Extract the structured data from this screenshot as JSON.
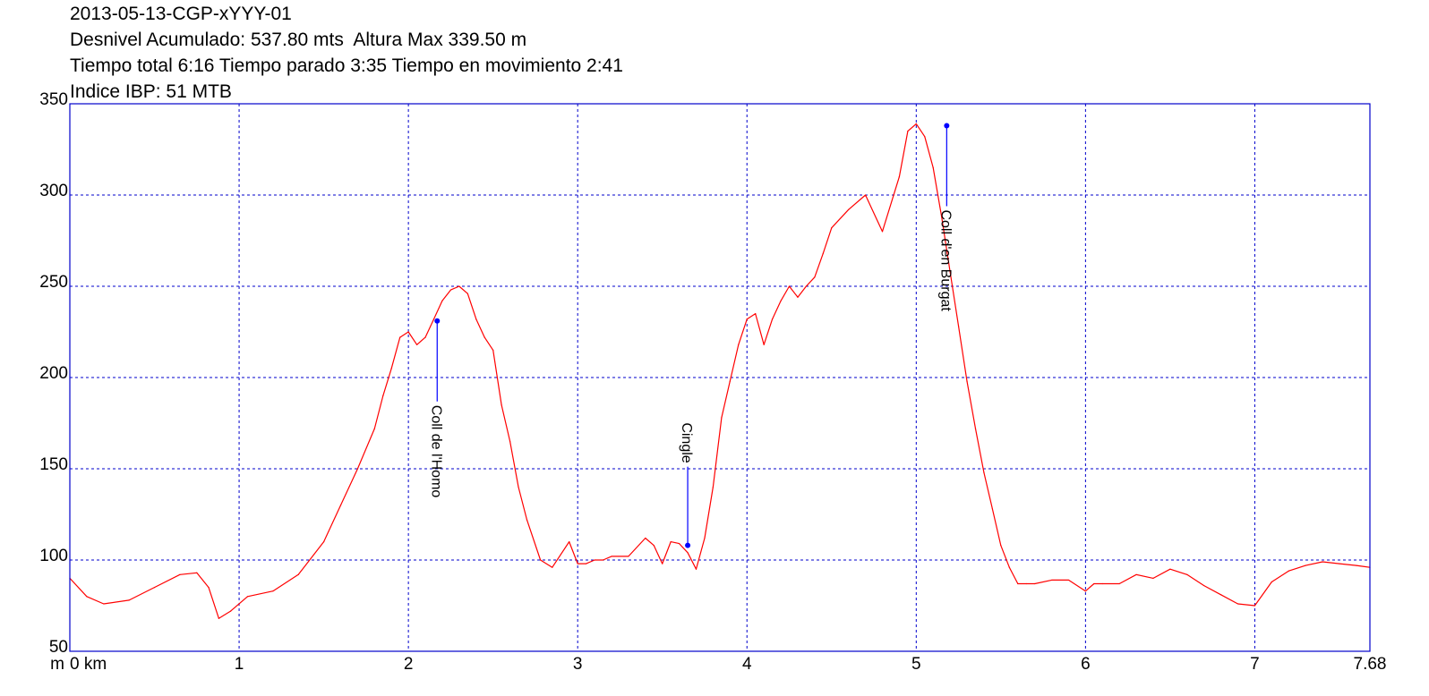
{
  "header": {
    "line1": "2013-05-13-CGP-xYYY-01",
    "line2": "Desnivel Acumulado: 537.80 mts  Altura Max 339.50 m",
    "line3": "Tiempo total 6:16 Tiempo parado 3:35 Tiempo en movimiento 2:41",
    "line4": "Indice IBP: 51 MTB"
  },
  "colors": {
    "frame": "#0000cc",
    "grid": "#0000cc",
    "profile": "#ff0000",
    "marker": "#0000ff",
    "text": "#000000"
  },
  "chart_data": {
    "type": "line",
    "title": "2013-05-13-CGP-xYYY-01",
    "xlabel": "km",
    "ylabel": "m",
    "xlim": [
      0,
      7.68
    ],
    "ylim": [
      50,
      350
    ],
    "x_ticks": [
      0,
      1,
      2,
      3,
      4,
      5,
      6,
      7,
      7.68
    ],
    "x_tick_labels": [
      "0 km",
      "1",
      "2",
      "3",
      "4",
      "5",
      "6",
      "7",
      "7.68"
    ],
    "y_ticks": [
      50,
      100,
      150,
      200,
      250,
      300,
      350
    ],
    "y_tick_labels": [
      "50",
      "100",
      "150",
      "200",
      "250",
      "300",
      "350"
    ],
    "y_unit_label": "m",
    "grid": true,
    "series": [
      {
        "x": [
          0,
          0.1,
          0.2,
          0.35,
          0.5,
          0.65,
          0.75,
          0.82,
          0.88,
          0.95,
          1.05,
          1.2,
          1.35,
          1.5,
          1.6,
          1.7,
          1.8,
          1.85,
          1.9,
          1.95,
          2.0,
          2.05,
          2.1,
          2.15,
          2.2,
          2.25,
          2.3,
          2.35,
          2.4,
          2.45,
          2.5,
          2.55,
          2.6,
          2.65,
          2.7,
          2.78,
          2.85,
          2.95,
          3.0,
          3.05,
          3.1,
          3.15,
          3.2,
          3.3,
          3.4,
          3.45,
          3.5,
          3.55,
          3.6,
          3.65,
          3.7,
          3.75,
          3.8,
          3.85,
          3.9,
          3.95,
          4.0,
          4.05,
          4.1,
          4.15,
          4.2,
          4.25,
          4.3,
          4.35,
          4.4,
          4.45,
          4.5,
          4.6,
          4.7,
          4.8,
          4.9,
          4.95,
          5.0,
          5.05,
          5.1,
          5.15,
          5.2,
          5.25,
          5.3,
          5.35,
          5.4,
          5.45,
          5.5,
          5.55,
          5.6,
          5.65,
          5.7,
          5.8,
          5.9,
          6.0,
          6.05,
          6.1,
          6.2,
          6.3,
          6.4,
          6.5,
          6.6,
          6.7,
          6.8,
          6.9,
          7.0,
          7.1,
          7.2,
          7.3,
          7.4,
          7.5,
          7.6,
          7.68
        ],
        "y": [
          90,
          80,
          76,
          78,
          85,
          92,
          93,
          85,
          68,
          72,
          80,
          83,
          92,
          110,
          130,
          150,
          172,
          190,
          205,
          222,
          225,
          218,
          222,
          232,
          242,
          248,
          250,
          246,
          232,
          222,
          215,
          185,
          165,
          140,
          122,
          100,
          96,
          110,
          98,
          98,
          100,
          100,
          102,
          102,
          112,
          108,
          98,
          110,
          109,
          104,
          95,
          112,
          140,
          178,
          198,
          218,
          232,
          235,
          218,
          232,
          242,
          250,
          244,
          250,
          255,
          268,
          282,
          292,
          300,
          280,
          310,
          335,
          339,
          332,
          315,
          288,
          258,
          228,
          198,
          172,
          148,
          128,
          108,
          96,
          87,
          87,
          87,
          89,
          89,
          83,
          87,
          87,
          87,
          92,
          90,
          95,
          92,
          86,
          81,
          76,
          75,
          88,
          94,
          97,
          99,
          98,
          97,
          96
        ]
      }
    ],
    "annotations": [
      {
        "label": "Coll de l'Homo",
        "x": 2.17,
        "y": 231
      },
      {
        "label": "Cingle",
        "x": 3.65,
        "y": 108
      },
      {
        "label": "Coll d'en Burgat",
        "x": 5.18,
        "y": 338
      }
    ]
  }
}
